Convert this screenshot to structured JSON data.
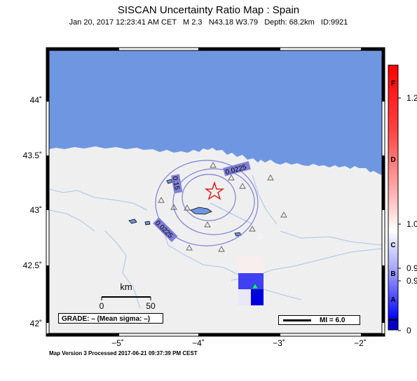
{
  "title": "SISCAN Uncertainty Ratio Map : Spain",
  "subtitle": "Jan 20, 2017 12:23:41 AM CET   M 2.3   N43.18 W3.79   Depth: 68.2km   ID:9921",
  "footer": "Map Version 3 Processed 2017-06-21 09:37:39 PM CEST",
  "grade_label": "GRADE: – (Mean sigma: –)",
  "mi_label": "MI = 6.0",
  "scale": {
    "unit": "km",
    "tick_0": "0",
    "tick_50": "50"
  },
  "axes": {
    "lat_labels": [
      "44˚",
      "43.5˚",
      "43˚",
      "42.5˚",
      "42˚"
    ],
    "lon_labels": [
      "−5˚",
      "−4˚",
      "−3˚",
      "−2˚"
    ]
  },
  "contours": [
    "0.15",
    "0.0225",
    "0.0225"
  ],
  "colorbar": {
    "letters": [
      "F",
      "D",
      "C",
      "B",
      "A"
    ],
    "values": [
      "1.2",
      "1.0",
      "0.9",
      "0.9",
      "0"
    ]
  },
  "colors": {
    "ocean": "#6f97e1",
    "land": "#efefef",
    "contour": "#7f7fd8",
    "epicenter": "#e02020",
    "station": "#00ff80"
  }
}
